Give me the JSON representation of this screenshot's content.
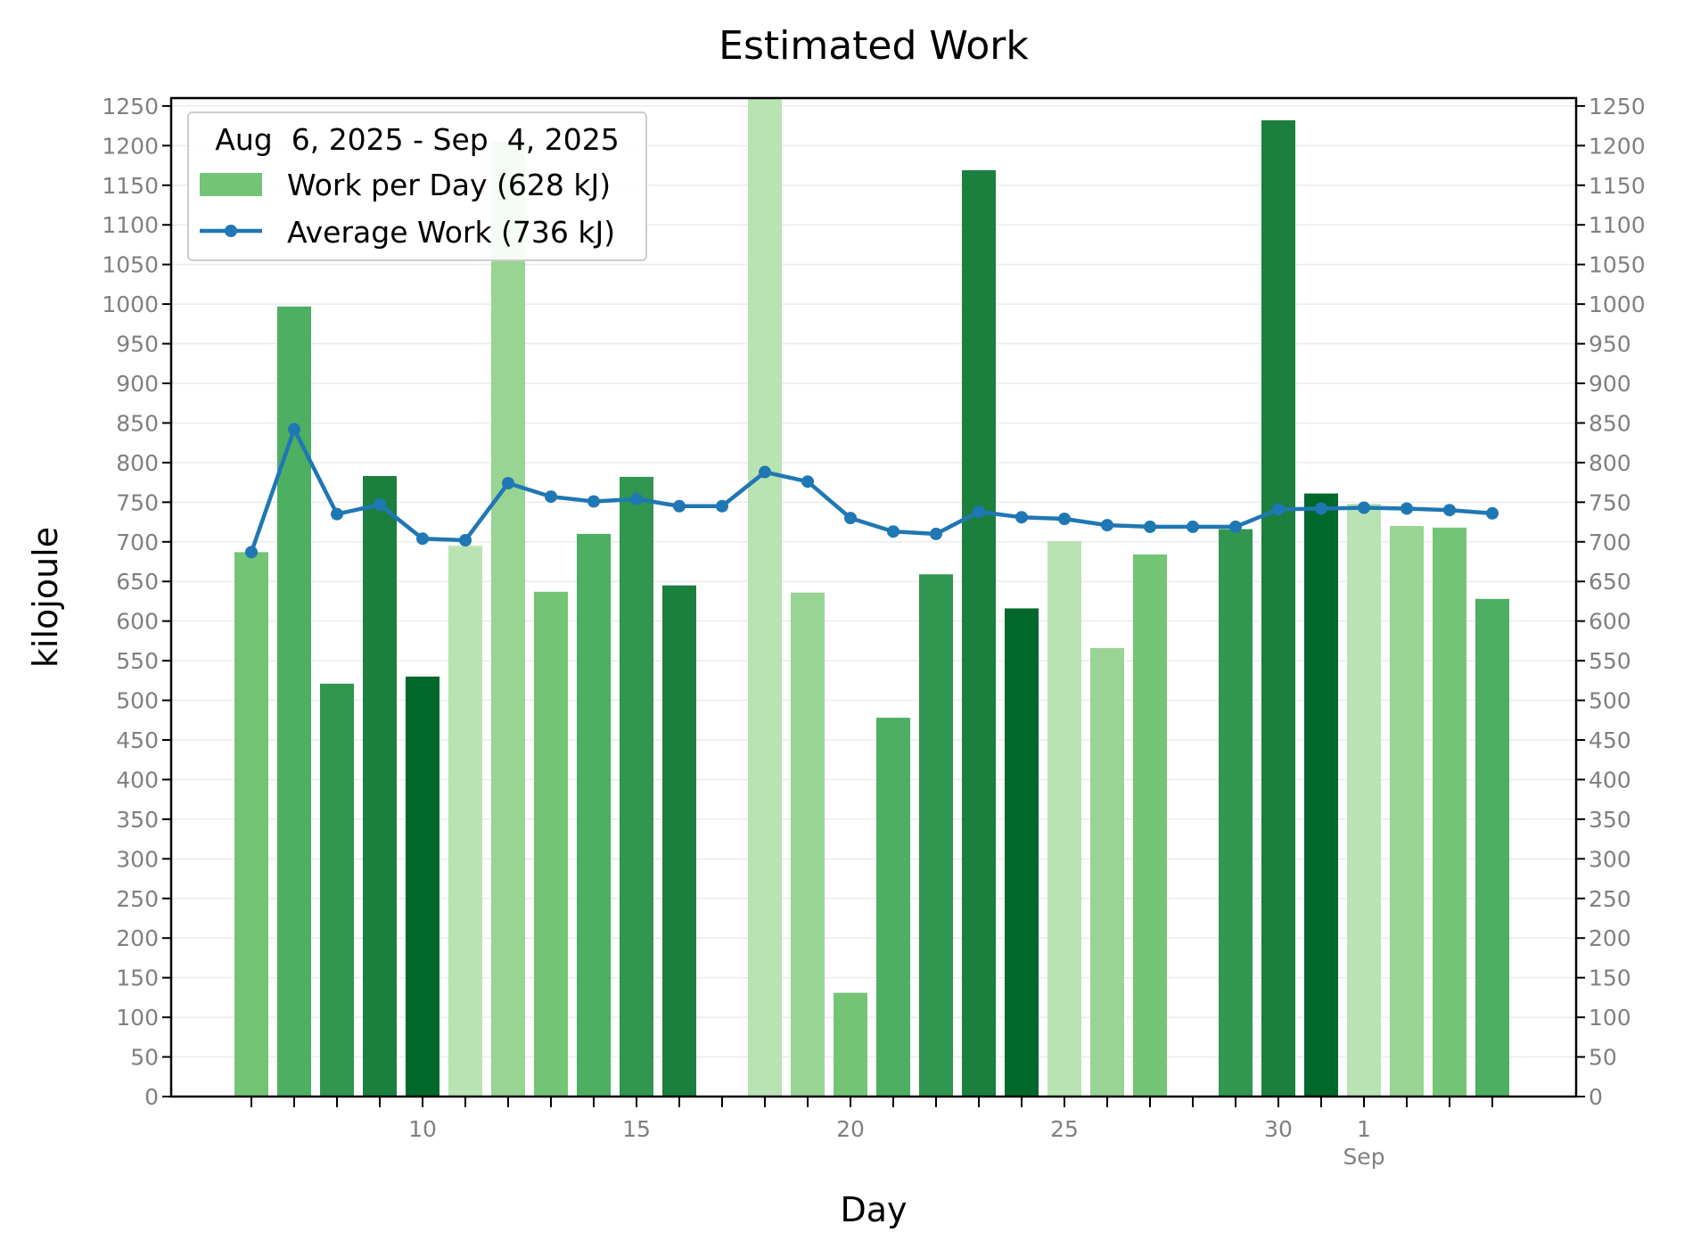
{
  "chart_data": {
    "type": "bar",
    "title": "Estimated Work",
    "xlabel": "Day",
    "ylabel": "kilojoule",
    "ylim": [
      0,
      1260
    ],
    "yticks": [
      0,
      50,
      100,
      150,
      200,
      250,
      300,
      350,
      400,
      450,
      500,
      550,
      600,
      650,
      700,
      750,
      800,
      850,
      900,
      950,
      1000,
      1050,
      1100,
      1150,
      1200,
      1250
    ],
    "grid": "horizontal",
    "legend_position": "top-left",
    "legend_title": "Aug  6, 2025 - Sep  4, 2025",
    "x_tick_labels": [
      {
        "date": "2025-08-10",
        "label": "10",
        "sublabel": ""
      },
      {
        "date": "2025-08-15",
        "label": "15",
        "sublabel": ""
      },
      {
        "date": "2025-08-20",
        "label": "20",
        "sublabel": ""
      },
      {
        "date": "2025-08-25",
        "label": "25",
        "sublabel": ""
      },
      {
        "date": "2025-08-30",
        "label": "30",
        "sublabel": ""
      },
      {
        "date": "2025-09-01",
        "label": "1",
        "sublabel": "Sep"
      }
    ],
    "x": [
      "2025-08-06",
      "2025-08-07",
      "2025-08-08",
      "2025-08-09",
      "2025-08-10",
      "2025-08-11",
      "2025-08-12",
      "2025-08-13",
      "2025-08-14",
      "2025-08-15",
      "2025-08-16",
      "2025-08-17",
      "2025-08-18",
      "2025-08-19",
      "2025-08-20",
      "2025-08-21",
      "2025-08-22",
      "2025-08-23",
      "2025-08-24",
      "2025-08-25",
      "2025-08-26",
      "2025-08-27",
      "2025-08-28",
      "2025-08-29",
      "2025-08-30",
      "2025-08-31",
      "2025-09-01",
      "2025-09-02",
      "2025-09-03",
      "2025-09-04"
    ],
    "series": [
      {
        "name": "Work per Day (628 kJ)",
        "type": "bar",
        "values": [
          687,
          997,
          521,
          783,
          530,
          695,
          1205,
          637,
          710,
          782,
          645,
          0,
          1265,
          636,
          131,
          478,
          659,
          1169,
          616,
          701,
          566,
          684,
          0,
          716,
          1232,
          761,
          748,
          720,
          718,
          628
        ],
        "colors": [
          "#74c476",
          "#4daf62",
          "#31964f",
          "#1b7f3e",
          "#00682a",
          "#b9e3b2",
          "#98d494",
          "#74c476",
          "#4daf62",
          "#31964f",
          "#1b7f3e",
          "#00682a",
          "#b9e3b2",
          "#98d494",
          "#74c476",
          "#4daf62",
          "#31964f",
          "#1b7f3e",
          "#00682a",
          "#b9e3b2",
          "#98d494",
          "#74c476",
          "#4daf62",
          "#31964f",
          "#1b7f3e",
          "#00682a",
          "#b9e3b2",
          "#98d494",
          "#74c476",
          "#4daf62"
        ]
      },
      {
        "name": "Average Work (736 kJ)",
        "type": "line",
        "color": "#1f77b4",
        "values": [
          687,
          842,
          735,
          747,
          704,
          702,
          774,
          757,
          751,
          754,
          745,
          745,
          788,
          776,
          730,
          713,
          710,
          738,
          731,
          729,
          721,
          719,
          719,
          719,
          741,
          742,
          743,
          742,
          740,
          736
        ]
      }
    ]
  }
}
